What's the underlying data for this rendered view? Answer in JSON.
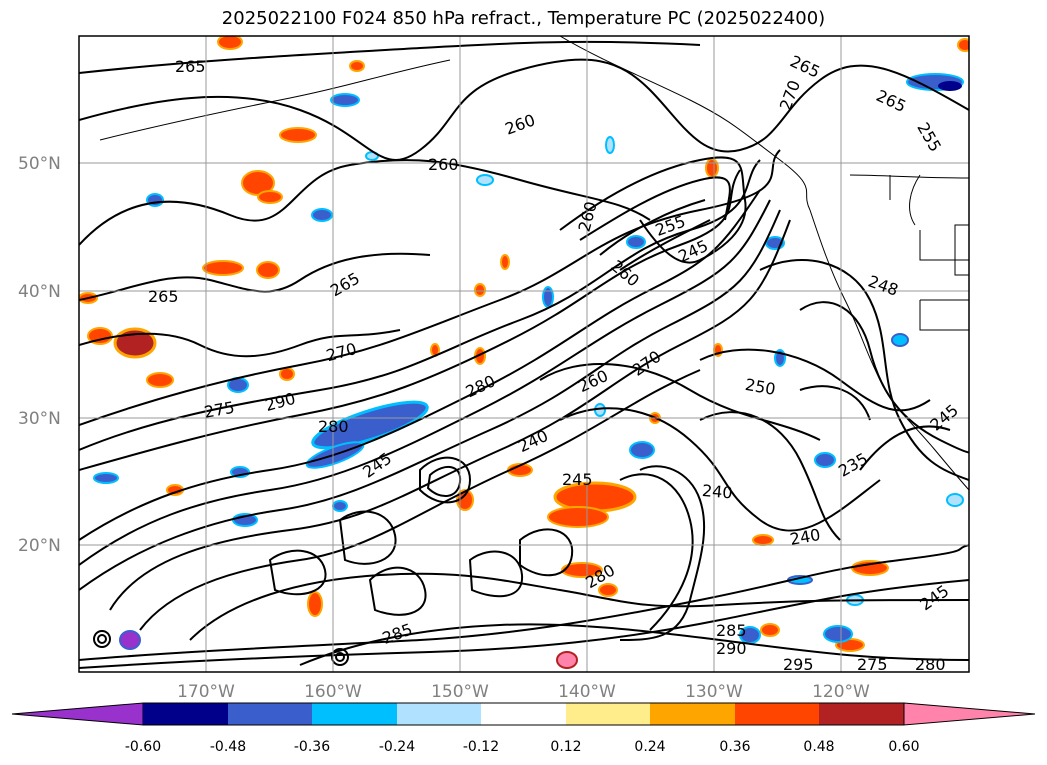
{
  "title": "2025022100 F024 850 hPa refract., Temperature PC (2025022400)",
  "map": {
    "lat_labels": [
      "50°N",
      "40°N",
      "30°N",
      "20°N"
    ],
    "lon_labels": [
      "170°W",
      "160°W",
      "150°W",
      "140°W",
      "130°W",
      "120°W"
    ],
    "contour_labels": [
      "265",
      "260",
      "260",
      "260",
      "265",
      "265",
      "270",
      "275",
      "290",
      "280",
      "280",
      "260",
      "255",
      "245",
      "260",
      "270",
      "250",
      "240",
      "245",
      "240",
      "235",
      "240",
      "245",
      "285",
      "290",
      "280",
      "285",
      "295",
      "275",
      "280",
      "245",
      "265",
      "270",
      "265",
      "255",
      "245",
      "248"
    ]
  },
  "colorbar": {
    "ticks": [
      "-0.60",
      "-0.48",
      "-0.36",
      "-0.24",
      "-0.12",
      "0.12",
      "0.24",
      "0.36",
      "0.48",
      "0.60"
    ],
    "colors": [
      "#9932cc",
      "#00008b",
      "#3a5fcd",
      "#00bfff",
      "#b0e2ff",
      "#ffffff",
      "#ffec8b",
      "#ffa500",
      "#ff4500",
      "#b22222",
      "#ff83aa"
    ]
  }
}
